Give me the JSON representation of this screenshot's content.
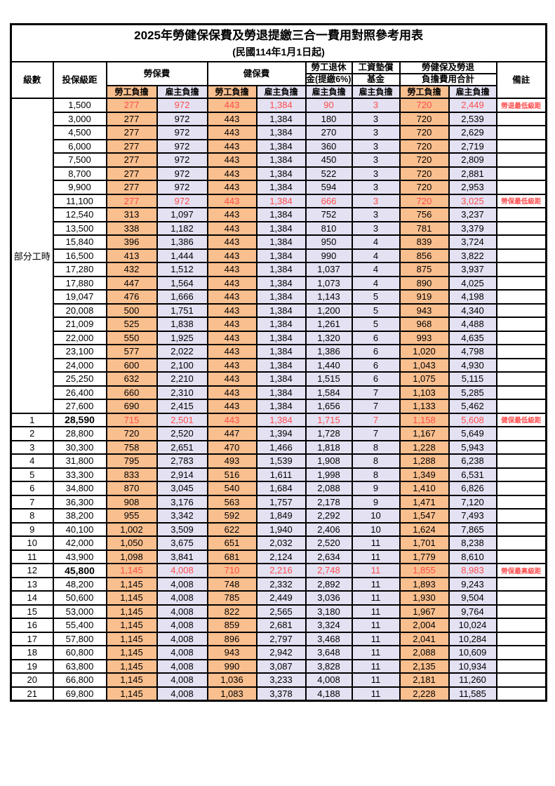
{
  "title": "2025年勞健保保費及勞退提繳三合一費用對照參考用表",
  "subtitle": "(民國114年1月1日起)",
  "columns": {
    "level": "級數",
    "bracket": "投保級距",
    "labor_insurance": "勞保費",
    "health_insurance": "健保費",
    "pension_top": "勞工退休",
    "pension_bottom": "金(提繳6%)",
    "wage_fund_top": "工資墊償",
    "wage_fund_bottom": "基金",
    "total_top": "勞健保及勞退",
    "total_bottom": "負擔費用合計",
    "remark": "備註",
    "employee_burden": "勞工負擔",
    "employer_burden": "雇主負擔"
  },
  "value_column_types": [
    "employee",
    "employer",
    "employee",
    "employer",
    "employer",
    "employer",
    "employee",
    "employer"
  ],
  "colors": {
    "employee_bg": "#FABF8F",
    "employer_bg": "#E3E1F2",
    "highlight_red": "#FF4D4D",
    "border": "#000000"
  },
  "rows": [
    {
      "level": "部分工時",
      "level_span": 23,
      "bracket": "1,500",
      "cells": [
        "277",
        "972",
        "443",
        "1,384",
        "90",
        "3",
        "720",
        "2,449"
      ],
      "remark": "勞退最低級距",
      "highlight": true
    },
    {
      "bracket": "3,000",
      "cells": [
        "277",
        "972",
        "443",
        "1,384",
        "180",
        "3",
        "720",
        "2,539"
      ],
      "remark": ""
    },
    {
      "bracket": "4,500",
      "cells": [
        "277",
        "972",
        "443",
        "1,384",
        "270",
        "3",
        "720",
        "2,629"
      ],
      "remark": ""
    },
    {
      "bracket": "6,000",
      "cells": [
        "277",
        "972",
        "443",
        "1,384",
        "360",
        "3",
        "720",
        "2,719"
      ],
      "remark": ""
    },
    {
      "bracket": "7,500",
      "cells": [
        "277",
        "972",
        "443",
        "1,384",
        "450",
        "3",
        "720",
        "2,809"
      ],
      "remark": ""
    },
    {
      "bracket": "8,700",
      "cells": [
        "277",
        "972",
        "443",
        "1,384",
        "522",
        "3",
        "720",
        "2,881"
      ],
      "remark": ""
    },
    {
      "bracket": "9,900",
      "cells": [
        "277",
        "972",
        "443",
        "1,384",
        "594",
        "3",
        "720",
        "2,953"
      ],
      "remark": ""
    },
    {
      "bracket": "11,100",
      "cells": [
        "277",
        "972",
        "443",
        "1,384",
        "666",
        "3",
        "720",
        "3,025"
      ],
      "remark": "勞保最低級距",
      "highlight": true
    },
    {
      "bracket": "12,540",
      "cells": [
        "313",
        "1,097",
        "443",
        "1,384",
        "752",
        "3",
        "756",
        "3,237"
      ],
      "remark": ""
    },
    {
      "bracket": "13,500",
      "cells": [
        "338",
        "1,182",
        "443",
        "1,384",
        "810",
        "3",
        "781",
        "3,379"
      ],
      "remark": ""
    },
    {
      "bracket": "15,840",
      "cells": [
        "396",
        "1,386",
        "443",
        "1,384",
        "950",
        "4",
        "839",
        "3,724"
      ],
      "remark": ""
    },
    {
      "bracket": "16,500",
      "cells": [
        "413",
        "1,444",
        "443",
        "1,384",
        "990",
        "4",
        "856",
        "3,822"
      ],
      "remark": ""
    },
    {
      "bracket": "17,280",
      "cells": [
        "432",
        "1,512",
        "443",
        "1,384",
        "1,037",
        "4",
        "875",
        "3,937"
      ],
      "remark": ""
    },
    {
      "bracket": "17,880",
      "cells": [
        "447",
        "1,564",
        "443",
        "1,384",
        "1,073",
        "4",
        "890",
        "4,025"
      ],
      "remark": ""
    },
    {
      "bracket": "19,047",
      "cells": [
        "476",
        "1,666",
        "443",
        "1,384",
        "1,143",
        "5",
        "919",
        "4,198"
      ],
      "remark": ""
    },
    {
      "bracket": "20,008",
      "cells": [
        "500",
        "1,751",
        "443",
        "1,384",
        "1,200",
        "5",
        "943",
        "4,340"
      ],
      "remark": ""
    },
    {
      "bracket": "21,009",
      "cells": [
        "525",
        "1,838",
        "443",
        "1,384",
        "1,261",
        "5",
        "968",
        "4,488"
      ],
      "remark": ""
    },
    {
      "bracket": "22,000",
      "cells": [
        "550",
        "1,925",
        "443",
        "1,384",
        "1,320",
        "6",
        "993",
        "4,635"
      ],
      "remark": ""
    },
    {
      "bracket": "23,100",
      "cells": [
        "577",
        "2,022",
        "443",
        "1,384",
        "1,386",
        "6",
        "1,020",
        "4,798"
      ],
      "remark": ""
    },
    {
      "bracket": "24,000",
      "cells": [
        "600",
        "2,100",
        "443",
        "1,384",
        "1,440",
        "6",
        "1,043",
        "4,930"
      ],
      "remark": ""
    },
    {
      "bracket": "25,250",
      "cells": [
        "632",
        "2,210",
        "443",
        "1,384",
        "1,515",
        "6",
        "1,075",
        "5,115"
      ],
      "remark": ""
    },
    {
      "bracket": "26,400",
      "cells": [
        "660",
        "2,310",
        "443",
        "1,384",
        "1,584",
        "7",
        "1,103",
        "5,285"
      ],
      "remark": ""
    },
    {
      "bracket": "27,600",
      "cells": [
        "690",
        "2,415",
        "443",
        "1,384",
        "1,656",
        "7",
        "1,133",
        "5,462"
      ],
      "remark": ""
    },
    {
      "level": "1",
      "bracket": "28,590",
      "cells": [
        "715",
        "2,501",
        "443",
        "1,384",
        "1,715",
        "7",
        "1,158",
        "5,608"
      ],
      "remark": "健保最低級距",
      "highlight": true,
      "emph": true
    },
    {
      "level": "2",
      "bracket": "28,800",
      "cells": [
        "720",
        "2,520",
        "447",
        "1,394",
        "1,728",
        "7",
        "1,167",
        "5,649"
      ],
      "remark": ""
    },
    {
      "level": "3",
      "bracket": "30,300",
      "cells": [
        "758",
        "2,651",
        "470",
        "1,466",
        "1,818",
        "8",
        "1,228",
        "5,943"
      ],
      "remark": ""
    },
    {
      "level": "4",
      "bracket": "31,800",
      "cells": [
        "795",
        "2,783",
        "493",
        "1,539",
        "1,908",
        "8",
        "1,288",
        "6,238"
      ],
      "remark": ""
    },
    {
      "level": "5",
      "bracket": "33,300",
      "cells": [
        "833",
        "2,914",
        "516",
        "1,611",
        "1,998",
        "8",
        "1,349",
        "6,531"
      ],
      "remark": ""
    },
    {
      "level": "6",
      "bracket": "34,800",
      "cells": [
        "870",
        "3,045",
        "540",
        "1,684",
        "2,088",
        "9",
        "1,410",
        "6,826"
      ],
      "remark": ""
    },
    {
      "level": "7",
      "bracket": "36,300",
      "cells": [
        "908",
        "3,176",
        "563",
        "1,757",
        "2,178",
        "9",
        "1,471",
        "7,120"
      ],
      "remark": ""
    },
    {
      "level": "8",
      "bracket": "38,200",
      "cells": [
        "955",
        "3,342",
        "592",
        "1,849",
        "2,292",
        "10",
        "1,547",
        "7,493"
      ],
      "remark": ""
    },
    {
      "level": "9",
      "bracket": "40,100",
      "cells": [
        "1,002",
        "3,509",
        "622",
        "1,940",
        "2,406",
        "10",
        "1,624",
        "7,865"
      ],
      "remark": ""
    },
    {
      "level": "10",
      "bracket": "42,000",
      "cells": [
        "1,050",
        "3,675",
        "651",
        "2,032",
        "2,520",
        "11",
        "1,701",
        "8,238"
      ],
      "remark": ""
    },
    {
      "level": "11",
      "bracket": "43,900",
      "cells": [
        "1,098",
        "3,841",
        "681",
        "2,124",
        "2,634",
        "11",
        "1,779",
        "8,610"
      ],
      "remark": ""
    },
    {
      "level": "12",
      "bracket": "45,800",
      "cells": [
        "1,145",
        "4,008",
        "710",
        "2,216",
        "2,748",
        "11",
        "1,855",
        "8,983"
      ],
      "remark": "勞保最高級距",
      "highlight": true,
      "emph": true
    },
    {
      "level": "13",
      "bracket": "48,200",
      "cells": [
        "1,145",
        "4,008",
        "748",
        "2,332",
        "2,892",
        "11",
        "1,893",
        "9,243"
      ],
      "remark": ""
    },
    {
      "level": "14",
      "bracket": "50,600",
      "cells": [
        "1,145",
        "4,008",
        "785",
        "2,449",
        "3,036",
        "11",
        "1,930",
        "9,504"
      ],
      "remark": ""
    },
    {
      "level": "15",
      "bracket": "53,000",
      "cells": [
        "1,145",
        "4,008",
        "822",
        "2,565",
        "3,180",
        "11",
        "1,967",
        "9,764"
      ],
      "remark": ""
    },
    {
      "level": "16",
      "bracket": "55,400",
      "cells": [
        "1,145",
        "4,008",
        "859",
        "2,681",
        "3,324",
        "11",
        "2,004",
        "10,024"
      ],
      "remark": ""
    },
    {
      "level": "17",
      "bracket": "57,800",
      "cells": [
        "1,145",
        "4,008",
        "896",
        "2,797",
        "3,468",
        "11",
        "2,041",
        "10,284"
      ],
      "remark": ""
    },
    {
      "level": "18",
      "bracket": "60,800",
      "cells": [
        "1,145",
        "4,008",
        "943",
        "2,942",
        "3,648",
        "11",
        "2,088",
        "10,609"
      ],
      "remark": ""
    },
    {
      "level": "19",
      "bracket": "63,800",
      "cells": [
        "1,145",
        "4,008",
        "990",
        "3,087",
        "3,828",
        "11",
        "2,135",
        "10,934"
      ],
      "remark": ""
    },
    {
      "level": "20",
      "bracket": "66,800",
      "cells": [
        "1,145",
        "4,008",
        "1,036",
        "3,233",
        "4,008",
        "11",
        "2,181",
        "11,260"
      ],
      "remark": ""
    },
    {
      "level": "21",
      "bracket": "69,800",
      "cells": [
        "1,145",
        "4,008",
        "1,083",
        "3,378",
        "4,188",
        "11",
        "2,228",
        "11,585"
      ],
      "remark": ""
    }
  ]
}
